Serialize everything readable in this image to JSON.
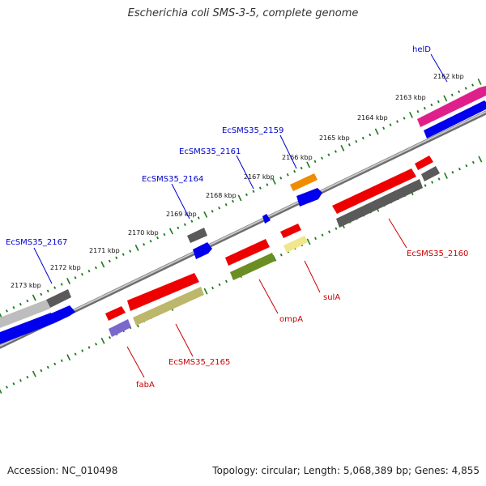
{
  "title": "Escherichia coli SMS-3-5, complete genome",
  "footer": {
    "accession": "Accession: NC_010498",
    "summary": "Topology: circular; Length: 5,068,389 bp; Genes: 4,855"
  },
  "kbp_ticks": [
    "2162 kbp",
    "2163 kbp",
    "2164 kbp",
    "2165 kbp",
    "2166 kbp",
    "2167 kbp",
    "2168 kbp",
    "2169 kbp",
    "2170 kbp",
    "2171 kbp",
    "2172 kbp",
    "2173 kbp"
  ],
  "gene_labels": {
    "helD": "helD",
    "ecsms35_2159": "EcSMS35_2159",
    "ecsms35_2161": "EcSMS35_2161",
    "ecsms35_2164": "EcSMS35_2164",
    "ecsms35_2167": "EcSMS35_2167",
    "ecsms35_2160": "EcSMS35_2160",
    "sula": "sulA",
    "ompa": "ompA",
    "ecsms35_2165": "EcSMS35_2165",
    "faba": "fabA"
  },
  "colors": {
    "forward_label": "#0000cc",
    "reverse_label": "#cc0000",
    "tick_green": "#1a7a1a",
    "backbone": "#8c8c8c",
    "blue": "#0000ee",
    "red": "#ee0000",
    "dark_gray": "#5a5a5a",
    "light_gray": "#bdbdbd",
    "magenta": "#e0208a",
    "orange": "#f08c00",
    "olive": "#6b8e23",
    "khaki": "#bdb76b",
    "pale_yellow": "#f0e68c",
    "lavender": "#7b68cc"
  }
}
